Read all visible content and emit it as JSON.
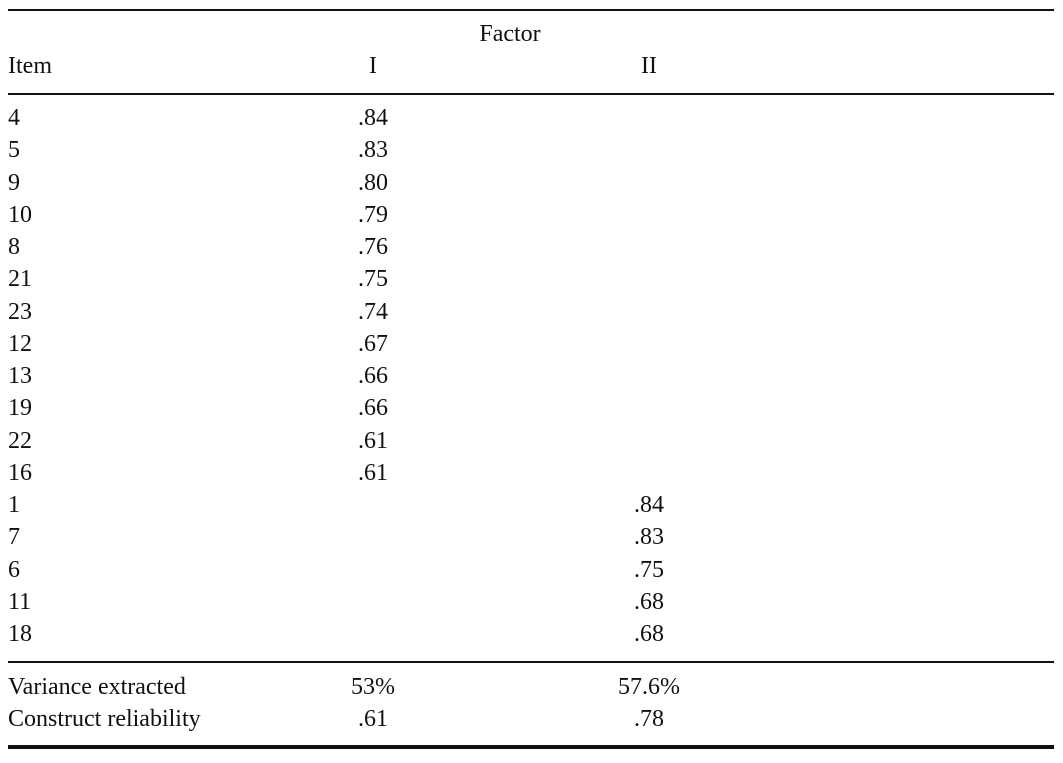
{
  "table": {
    "header": {
      "group": "Factor",
      "columns": [
        "Item",
        "I",
        "II"
      ]
    },
    "rows": [
      [
        "4",
        ".84",
        null
      ],
      [
        "5",
        ".83",
        null
      ],
      [
        "9",
        ".80",
        null
      ],
      [
        "10",
        ".79",
        null
      ],
      [
        "8",
        ".76",
        null
      ],
      [
        "21",
        ".75",
        null
      ],
      [
        "23",
        ".74",
        null
      ],
      [
        "12",
        ".67",
        null
      ],
      [
        "13",
        ".66",
        null
      ],
      [
        "19",
        ".66",
        null
      ],
      [
        "22",
        ".61",
        null
      ],
      [
        "16",
        ".61",
        null
      ],
      [
        "1",
        null,
        ".84"
      ],
      [
        "7",
        null,
        ".83"
      ],
      [
        "6",
        null,
        ".75"
      ],
      [
        "11",
        null,
        ".68"
      ],
      [
        "18",
        null,
        ".68"
      ]
    ],
    "footer": [
      [
        "Variance extracted",
        "53%",
        "57.6%"
      ],
      [
        "Construct reliability",
        ".61",
        ".78"
      ]
    ]
  }
}
